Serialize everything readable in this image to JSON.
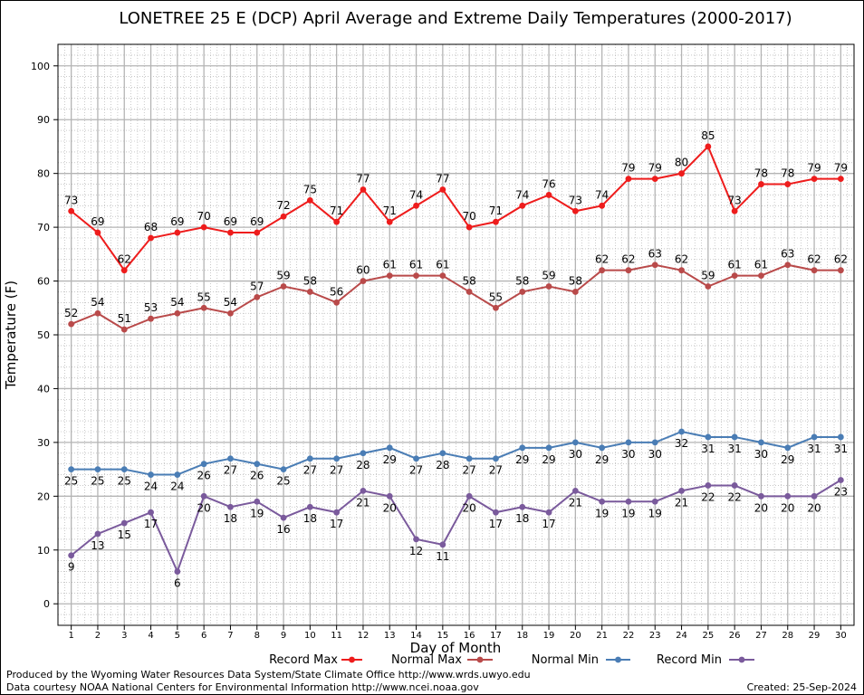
{
  "chart_data": {
    "type": "line",
    "title": "LONETREE 25 E (DCP) April Average and Extreme Daily Temperatures (2000-2017)",
    "xlabel": "Day of Month",
    "ylabel": "Temperature (F)",
    "x": [
      1,
      2,
      3,
      4,
      5,
      6,
      7,
      8,
      9,
      10,
      11,
      12,
      13,
      14,
      15,
      16,
      17,
      18,
      19,
      20,
      21,
      22,
      23,
      24,
      25,
      26,
      27,
      28,
      29,
      30
    ],
    "xlim": [
      0.5,
      30.5
    ],
    "ylim": [
      -4,
      104
    ],
    "y_ticks": [
      0,
      10,
      20,
      30,
      40,
      50,
      60,
      70,
      80,
      90,
      100
    ],
    "grid": true,
    "legend_position": "bottom",
    "series": [
      {
        "name": "Record Max",
        "color": "#ee1c1c",
        "values": [
          73,
          69,
          62,
          68,
          69,
          70,
          69,
          69,
          72,
          75,
          71,
          77,
          71,
          74,
          77,
          70,
          71,
          74,
          76,
          73,
          74,
          79,
          79,
          80,
          85,
          73,
          78,
          78,
          79,
          79
        ]
      },
      {
        "name": "Normal Max",
        "color": "#b94a4a",
        "values": [
          52,
          54,
          51,
          53,
          54,
          55,
          54,
          57,
          59,
          58,
          56,
          60,
          61,
          61,
          61,
          58,
          55,
          58,
          59,
          58,
          62,
          62,
          63,
          62,
          59,
          61,
          61,
          63,
          62,
          62
        ]
      },
      {
        "name": "Normal Min",
        "color": "#4a7db5",
        "values": [
          25,
          25,
          25,
          24,
          24,
          26,
          27,
          26,
          25,
          27,
          27,
          28,
          29,
          27,
          28,
          27,
          27,
          29,
          29,
          30,
          29,
          30,
          30,
          32,
          31,
          31,
          30,
          29,
          31,
          31
        ]
      },
      {
        "name": "Record Min",
        "color": "#7a5a9c",
        "values": [
          9,
          13,
          15,
          17,
          6,
          20,
          18,
          19,
          16,
          18,
          17,
          21,
          20,
          12,
          11,
          20,
          17,
          18,
          17,
          21,
          19,
          19,
          19,
          21,
          22,
          22,
          20,
          20,
          20,
          23
        ]
      }
    ]
  },
  "footer": {
    "produced_by": "Produced by the Wyoming Water Resources Data System/State Climate Office http://www.wrds.uwyo.edu",
    "courtesy": "Data courtesy NOAA National Centers for Environmental Information http://www.ncei.noaa.gov",
    "created": "Created:  25-Sep-2024"
  }
}
